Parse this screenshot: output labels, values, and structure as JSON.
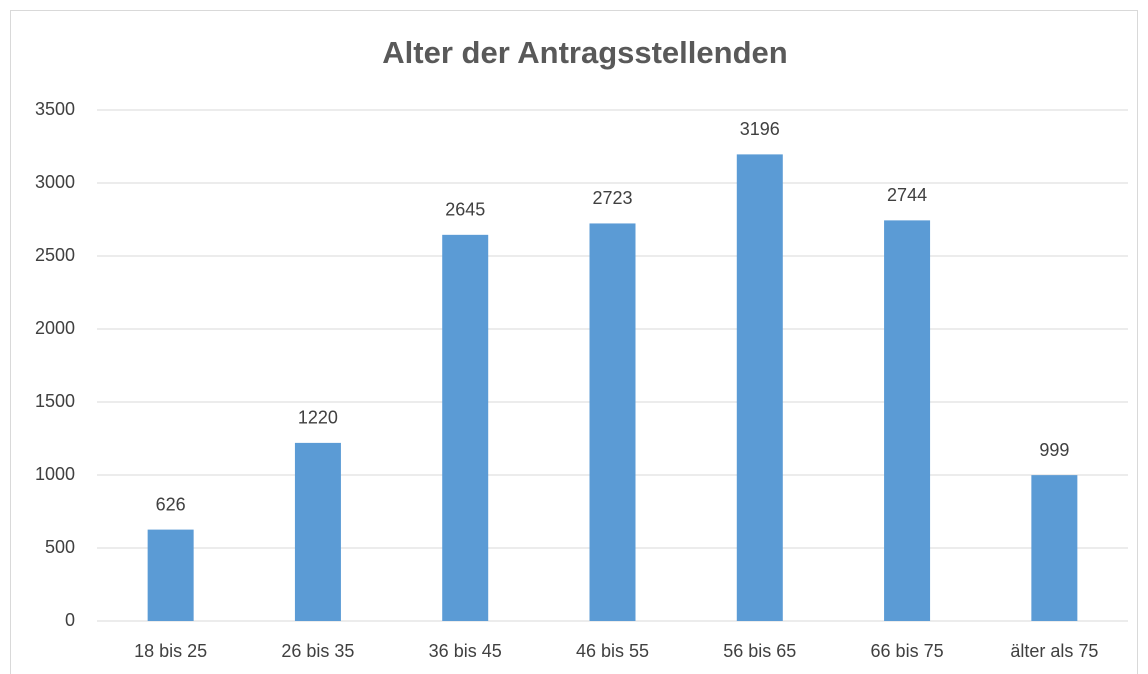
{
  "chart_data": {
    "type": "bar",
    "title": "Alter der Antragsstellenden",
    "categories": [
      "18 bis 25",
      "26 bis 35",
      "36 bis 45",
      "46 bis 55",
      "56 bis 65",
      "66 bis 75",
      "älter als 75"
    ],
    "values": [
      626,
      1220,
      2645,
      2723,
      3196,
      2744,
      999
    ],
    "color": "#5b9bd5",
    "ylim": [
      0,
      3500
    ],
    "yticks": [
      0,
      500,
      1000,
      1500,
      2000,
      2500,
      3000,
      3500
    ],
    "grid": true,
    "data_labels": true
  }
}
